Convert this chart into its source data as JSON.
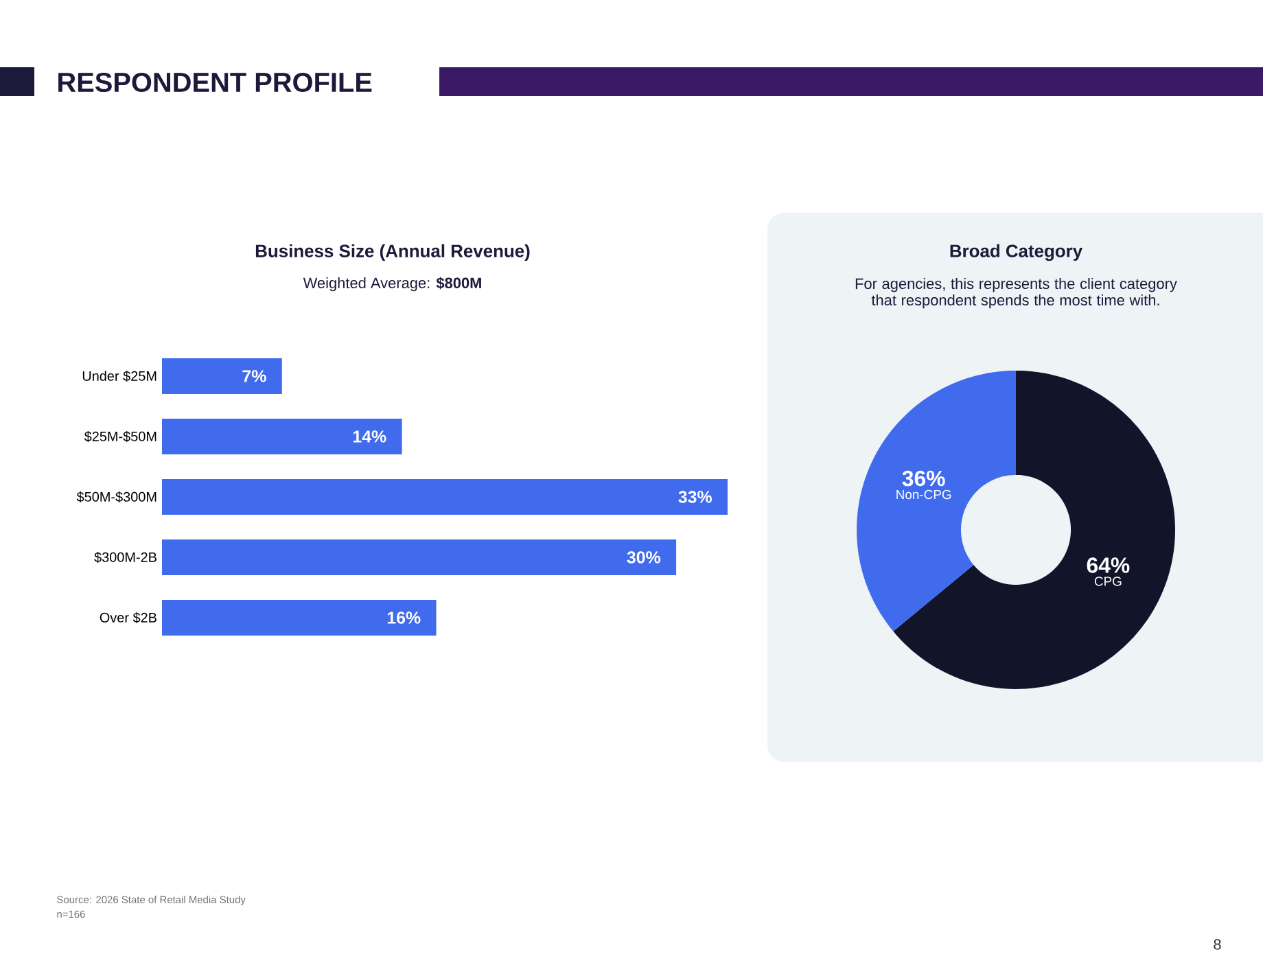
{
  "chart_data": [
    {
      "type": "bar",
      "orientation": "horizontal",
      "title": "Business Size (Annual Revenue)",
      "subtitle": "Weighted Average: **$800M**",
      "categories": [
        "Under $25M",
        "$25M-$50M",
        "$50M-$300M",
        "$300M-2B",
        "Over $2B"
      ],
      "values": [
        7,
        14,
        33,
        30,
        16
      ],
      "value_labels": [
        "7%",
        "14%",
        "33%",
        "30%",
        "16%"
      ],
      "color": "#416bed",
      "annotations": [
        "RESPONDENT PROFILE",
        "Source: 2026 State of Retail Media Study",
        "n=166",
        "8"
      ]
    },
    {
      "type": "donut",
      "title": "Broad Category",
      "subtitle": "For agencies, this represents the client category that respondent spends the most time with.",
      "categories": [
        "CPG",
        "Non-CPG"
      ],
      "values": [
        64,
        36
      ],
      "value_labels": [
        "64%",
        "36%"
      ],
      "colors": [
        "#12142a",
        "#416bed"
      ]
    }
  ]
}
